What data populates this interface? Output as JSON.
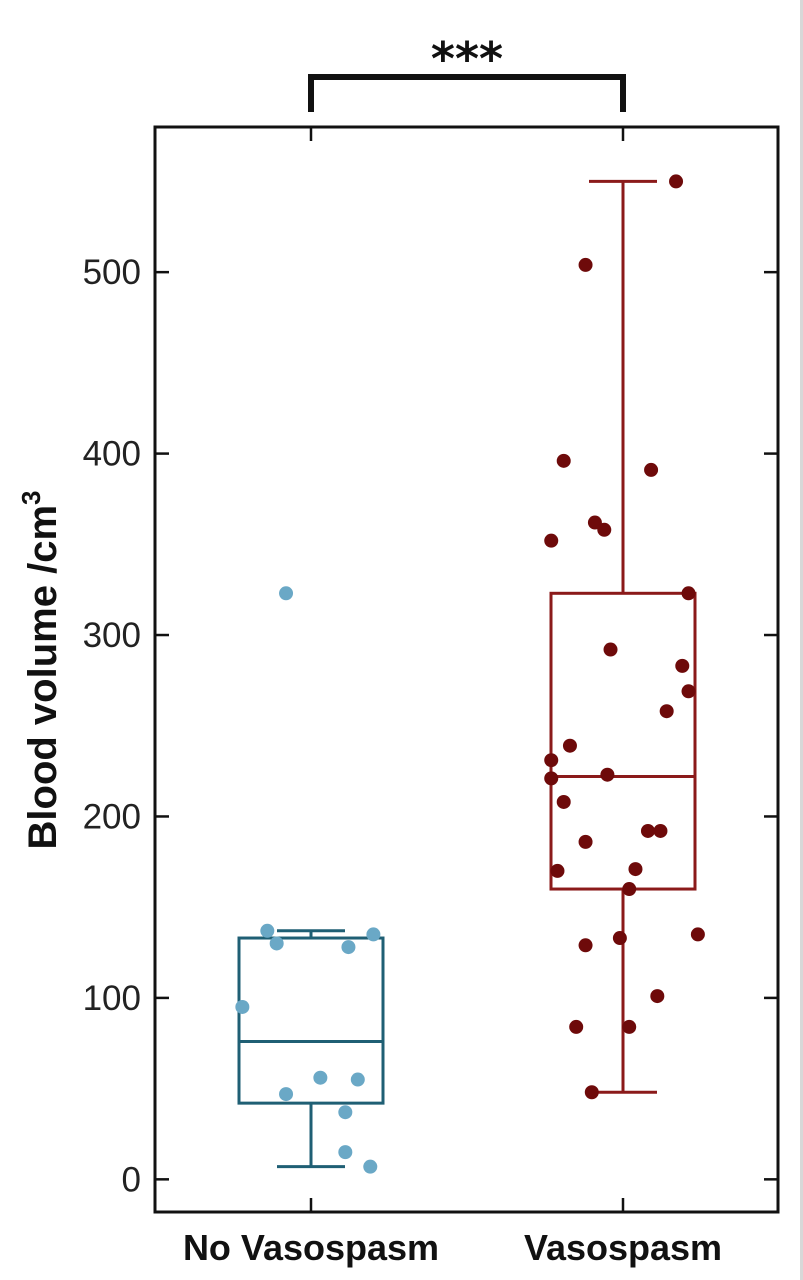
{
  "chart_data": {
    "type": "box",
    "ylabel": "Blood volume /cm",
    "ylabel_superscript": "3",
    "categories": [
      "No Vasospasm",
      "Vasospasm"
    ],
    "ylim": [
      -18,
      580
    ],
    "yticks": [
      0,
      100,
      200,
      300,
      400,
      500
    ],
    "significance": "***",
    "series": [
      {
        "category": "No Vasospasm",
        "color": "#1f5f74",
        "point_color": "#6aa8c6",
        "whisker_low": 7,
        "q1": 42,
        "median": 76,
        "q3": 133,
        "whisker_high": 137,
        "points": [
          {
            "x": -0.22,
            "y": 95
          },
          {
            "x": -0.14,
            "y": 137
          },
          {
            "x": -0.11,
            "y": 130
          },
          {
            "x": -0.08,
            "y": 323
          },
          {
            "x": -0.08,
            "y": 47
          },
          {
            "x": 0.03,
            "y": 56
          },
          {
            "x": 0.11,
            "y": 37
          },
          {
            "x": 0.11,
            "y": 15
          },
          {
            "x": 0.12,
            "y": 128
          },
          {
            "x": 0.15,
            "y": 55
          },
          {
            "x": 0.19,
            "y": 7
          },
          {
            "x": 0.2,
            "y": 135
          }
        ]
      },
      {
        "category": "Vasospasm",
        "color": "#8b1a1a",
        "point_color": "#6e0a0a",
        "whisker_low": 48,
        "q1": 160,
        "median": 222,
        "q3": 323,
        "whisker_high": 550,
        "points": [
          {
            "x": -0.23,
            "y": 352
          },
          {
            "x": -0.23,
            "y": 231
          },
          {
            "x": -0.23,
            "y": 221
          },
          {
            "x": -0.21,
            "y": 170
          },
          {
            "x": -0.19,
            "y": 208
          },
          {
            "x": -0.19,
            "y": 396
          },
          {
            "x": -0.17,
            "y": 239
          },
          {
            "x": -0.15,
            "y": 84
          },
          {
            "x": -0.12,
            "y": 504
          },
          {
            "x": -0.12,
            "y": 186
          },
          {
            "x": -0.12,
            "y": 129
          },
          {
            "x": -0.1,
            "y": 48
          },
          {
            "x": -0.09,
            "y": 362
          },
          {
            "x": -0.06,
            "y": 358
          },
          {
            "x": -0.04,
            "y": 292
          },
          {
            "x": -0.05,
            "y": 223
          },
          {
            "x": -0.01,
            "y": 133
          },
          {
            "x": 0.02,
            "y": 160
          },
          {
            "x": 0.02,
            "y": 84
          },
          {
            "x": 0.04,
            "y": 171
          },
          {
            "x": 0.08,
            "y": 192
          },
          {
            "x": 0.12,
            "y": 192
          },
          {
            "x": 0.09,
            "y": 391
          },
          {
            "x": 0.11,
            "y": 101
          },
          {
            "x": 0.14,
            "y": 258
          },
          {
            "x": 0.17,
            "y": 550
          },
          {
            "x": 0.19,
            "y": 283
          },
          {
            "x": 0.21,
            "y": 323
          },
          {
            "x": 0.21,
            "y": 269
          },
          {
            "x": 0.24,
            "y": 135
          }
        ]
      }
    ]
  }
}
